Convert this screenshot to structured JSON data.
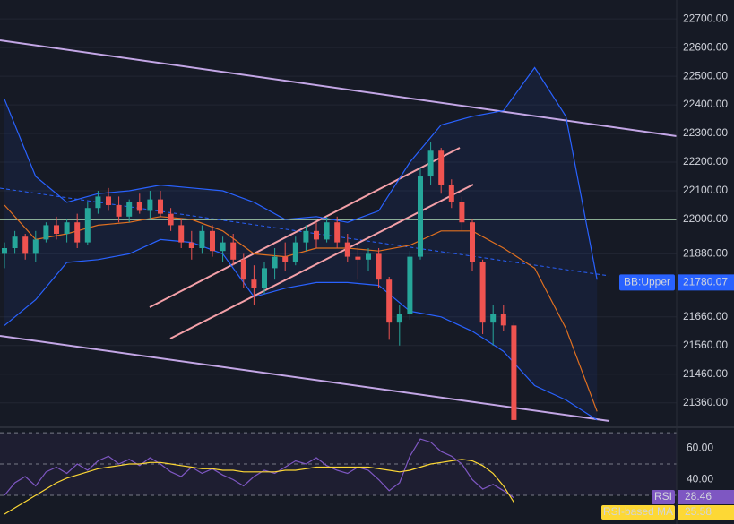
{
  "chart_data": [
    {
      "type": "candlestick",
      "ylim": [
        21281,
        22766
      ],
      "yticks": [
        {
          "value": 22700,
          "label": "22700.00"
        },
        {
          "value": 22600,
          "label": "22600.00"
        },
        {
          "value": 22500,
          "label": "22500.00"
        },
        {
          "value": 22400,
          "label": "22400.00"
        },
        {
          "value": 22300,
          "label": "22300.00"
        },
        {
          "value": 22200,
          "label": "22200.00"
        },
        {
          "value": 22100,
          "label": "22100.00"
        },
        {
          "value": 22000,
          "label": "22000.00"
        },
        {
          "value": 21880,
          "label": "21880.00"
        },
        {
          "value": 21660,
          "label": "21660.00"
        },
        {
          "value": 21560,
          "label": "21560.00"
        },
        {
          "value": 21460,
          "label": "21460.00"
        },
        {
          "value": 21360,
          "label": "21360.00"
        }
      ],
      "grid": true,
      "up_color": "#26a69a",
      "down_color": "#ef5350",
      "open": [
        21880,
        21900,
        21940,
        21880,
        21930,
        21980,
        21950,
        21990,
        21920,
        22040,
        22080,
        22050,
        22010,
        22060,
        22030,
        22070,
        22020,
        21980,
        21920,
        21900,
        21960,
        21890,
        21920,
        21860,
        21790,
        21760,
        21830,
        21870,
        21850,
        21920,
        21960,
        21930,
        21990,
        21920,
        21870,
        21860,
        21880,
        21790,
        21640,
        21670,
        21870,
        22150,
        22240,
        22120,
        22060,
        21990,
        21850,
        21640,
        21670,
        21630
      ],
      "high": [
        21920,
        21960,
        21950,
        21960,
        21990,
        22010,
        22000,
        22020,
        22060,
        22100,
        22110,
        22080,
        22070,
        22090,
        22100,
        22100,
        22040,
        22000,
        21960,
        21980,
        21980,
        21940,
        21950,
        21880,
        21840,
        21850,
        21900,
        21920,
        21940,
        21980,
        21990,
        22010,
        22010,
        21950,
        21910,
        21900,
        21900,
        21800,
        21700,
        21890,
        22180,
        22270,
        22250,
        22140,
        22080,
        22000,
        21860,
        21700,
        21700,
        21640
      ],
      "low": [
        21830,
        21880,
        21860,
        21850,
        21920,
        21930,
        21920,
        21900,
        21910,
        22020,
        22030,
        21990,
        21990,
        22020,
        22000,
        22010,
        21960,
        21900,
        21860,
        21880,
        21870,
        21850,
        21840,
        21760,
        21700,
        21740,
        21790,
        21820,
        21840,
        21890,
        21900,
        21920,
        21900,
        21850,
        21790,
        21820,
        21760,
        21580,
        21560,
        21650,
        21860,
        22120,
        22090,
        22040,
        21960,
        21820,
        21600,
        21560,
        21610,
        21300
      ],
      "close": [
        21900,
        21940,
        21880,
        21930,
        21980,
        21950,
        21990,
        21920,
        22040,
        22080,
        22050,
        22010,
        22060,
        22030,
        22070,
        22020,
        21980,
        21920,
        21900,
        21960,
        21890,
        21920,
        21860,
        21790,
        21760,
        21830,
        21870,
        21850,
        21920,
        21960,
        21930,
        21990,
        21920,
        21870,
        21860,
        21880,
        21790,
        21640,
        21670,
        21870,
        22150,
        22240,
        22120,
        22060,
        21990,
        21850,
        21640,
        21670,
        21630,
        21300
      ],
      "bands": {
        "x": [
          0,
          3,
          6,
          9,
          12,
          15,
          18,
          21,
          24,
          27,
          30,
          33,
          36,
          39,
          42,
          45,
          48,
          51,
          54,
          57
        ],
        "upper": [
          22420,
          22150,
          22060,
          22090,
          22100,
          22120,
          22110,
          22100,
          22060,
          22000,
          22010,
          21990,
          22030,
          22200,
          22330,
          22360,
          22380,
          22530,
          22360,
          21790
        ],
        "basis": [
          22050,
          21930,
          21950,
          21980,
          21990,
          22010,
          22000,
          21960,
          21880,
          21870,
          21900,
          21900,
          21890,
          21910,
          21960,
          21960,
          21900,
          21830,
          21620,
          21330
        ],
        "lower": [
          21630,
          21720,
          21850,
          21860,
          21880,
          21930,
          21920,
          21880,
          21730,
          21760,
          21780,
          21780,
          21770,
          21680,
          21660,
          21610,
          21540,
          21420,
          21370,
          21300
        ],
        "band_color": "#2962ff",
        "basis_color": "#e07020"
      },
      "badge": {
        "name": "BB:Upper",
        "value": 21780.07,
        "color": "#2962ff"
      }
    },
    {
      "type": "line",
      "ylim": [
        11.7,
        72.9
      ],
      "yticks": [
        {
          "value": 60,
          "label": "60.00"
        },
        {
          "value": 40,
          "label": "40.00"
        }
      ],
      "levels": [
        70,
        50,
        30
      ],
      "series": [
        {
          "name": "RSI",
          "color": "#7e57c2",
          "text_color": "#ffffff",
          "last": 28.46,
          "values": [
            30,
            38,
            42,
            36,
            45,
            48,
            44,
            50,
            46,
            52,
            55,
            50,
            53,
            49,
            54,
            50,
            45,
            42,
            48,
            44,
            47,
            43,
            40,
            36,
            42,
            46,
            44,
            48,
            52,
            50,
            54,
            49,
            46,
            44,
            48,
            46,
            40,
            33,
            38,
            55,
            66,
            64,
            58,
            55,
            50,
            40,
            34,
            37,
            33,
            28.46
          ]
        },
        {
          "name": "RSI-based MA",
          "color": "#fdd835",
          "text_color": "#000000",
          "last": 25.58,
          "values": [
            18,
            22,
            26,
            30,
            34,
            38,
            41,
            43,
            45,
            47,
            48,
            49,
            50,
            50,
            51,
            51,
            50,
            49,
            48,
            47,
            47,
            46,
            46,
            45,
            45,
            45,
            45,
            46,
            46,
            47,
            48,
            48,
            48,
            48,
            48,
            48,
            47,
            46,
            45,
            46,
            48,
            50,
            51,
            52,
            53,
            52,
            49,
            44,
            36,
            25.58
          ]
        }
      ]
    }
  ]
}
